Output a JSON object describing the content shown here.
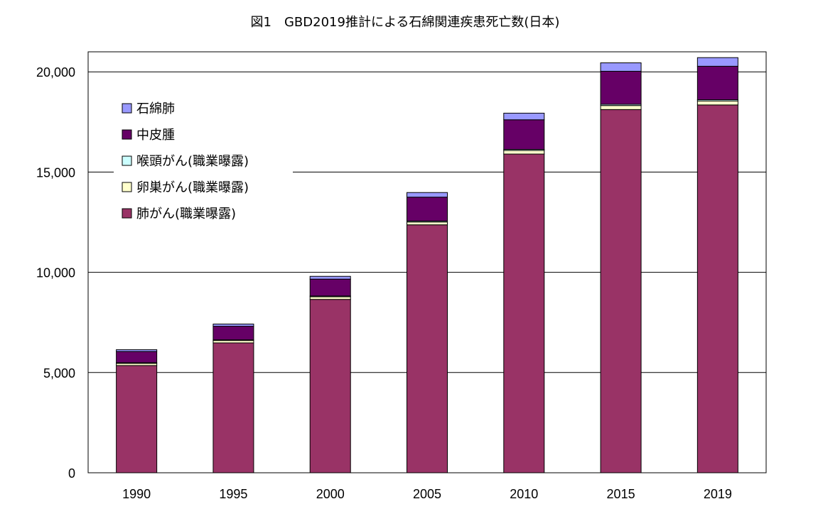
{
  "chart_data": {
    "type": "bar",
    "stacked": true,
    "title": "図1　GBD2019推計による石綿関連疾患死亡数(日本)",
    "xlabel": "",
    "ylabel": "",
    "ylim": [
      0,
      21000
    ],
    "yticks": [
      0,
      5000,
      10000,
      15000,
      20000
    ],
    "ytick_labels": [
      "0",
      "5,000",
      "10,000",
      "15,000",
      "20,000"
    ],
    "grid": true,
    "legend_placement": "top-left",
    "categories": [
      "1990",
      "1995",
      "2000",
      "2005",
      "2010",
      "2015",
      "2019"
    ],
    "series": [
      {
        "name": "肺がん(職業曝露)",
        "color": "#993366",
        "values": [
          5350,
          6480,
          8650,
          12370,
          15900,
          18120,
          18350
        ]
      },
      {
        "name": "卵巣がん(職業曝露)",
        "color": "#FFFFCC",
        "values": [
          110,
          120,
          130,
          140,
          180,
          200,
          200
        ]
      },
      {
        "name": "喉頭がん(職業曝露)",
        "color": "#CCFFFF",
        "values": [
          30,
          30,
          40,
          50,
          50,
          60,
          60
        ]
      },
      {
        "name": "中皮腫",
        "color": "#660066",
        "values": [
          560,
          680,
          840,
          1190,
          1480,
          1650,
          1670
        ]
      },
      {
        "name": "石綿肺",
        "color": "#9999FF",
        "values": [
          90,
          110,
          140,
          230,
          330,
          420,
          430
        ]
      }
    ],
    "legend_order": [
      "石綿肺",
      "中皮腫",
      "喉頭がん(職業曝露)",
      "卵巣がん(職業曝露)",
      "肺がん(職業曝露)"
    ]
  }
}
